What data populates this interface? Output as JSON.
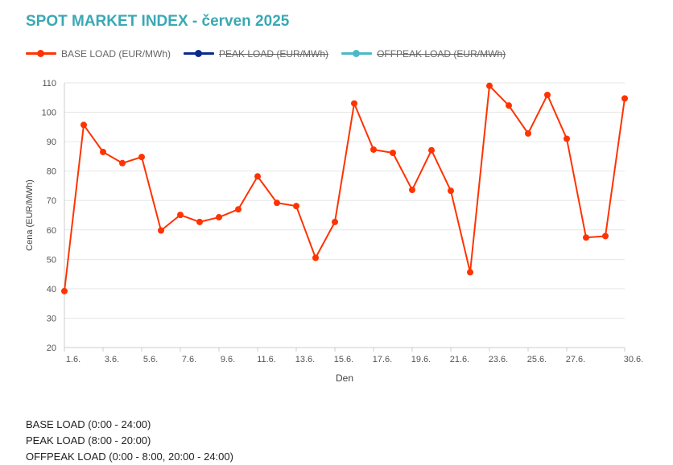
{
  "title": "SPOT MARKET INDEX - červen 2025",
  "legend": [
    {
      "label": "BASE LOAD (EUR/MWh)",
      "color": "#ff3300",
      "hidden": false
    },
    {
      "label": "PEAK LOAD (EUR/MWh)",
      "color": "#0a2a8c",
      "hidden": true
    },
    {
      "label": "OFFPEAK LOAD (EUR/MWh)",
      "color": "#4bb8c6",
      "hidden": true
    }
  ],
  "notes": [
    "BASE LOAD (0:00 - 24:00)",
    "PEAK LOAD (8:00 - 20:00)",
    "OFFPEAK LOAD (0:00 - 8:00, 20:00 - 24:00)"
  ],
  "chart_data": {
    "type": "line",
    "x": [
      1,
      2,
      3,
      4,
      5,
      6,
      7,
      8,
      9,
      10,
      11,
      12,
      13,
      14,
      15,
      16,
      17,
      18,
      19,
      20,
      21,
      22,
      23,
      24,
      25,
      26,
      27,
      28,
      29,
      30
    ],
    "x_tick_labels": [
      "1.6.",
      "3.6.",
      "5.6.",
      "7.6.",
      "9.6.",
      "11.6.",
      "13.6.",
      "15.6.",
      "17.6.",
      "19.6.",
      "21.6.",
      "23.6.",
      "25.6.",
      "27.6.",
      "30.6."
    ],
    "x_tick_values": [
      1,
      3,
      5,
      7,
      9,
      11,
      13,
      15,
      17,
      19,
      21,
      23,
      25,
      27,
      30
    ],
    "xlabel": "Den",
    "ylabel": "Cena (EUR/MWh)",
    "ylim": [
      20,
      110
    ],
    "y_ticks": [
      20,
      30,
      40,
      50,
      60,
      70,
      80,
      90,
      100,
      110
    ],
    "grid": true,
    "legend_position": "top-left",
    "series": [
      {
        "name": "BASE LOAD (EUR/MWh)",
        "color": "#ff3300",
        "values": [
          39.2,
          95.7,
          86.5,
          82.7,
          84.8,
          59.8,
          65.1,
          62.7,
          64.3,
          67.0,
          78.2,
          69.2,
          68.1,
          50.5,
          62.7,
          103.0,
          87.3,
          86.2,
          73.6,
          87.1,
          73.3,
          45.6,
          109.0,
          102.3,
          92.8,
          105.9,
          91.0,
          57.4,
          57.9,
          104.7
        ]
      }
    ]
  }
}
